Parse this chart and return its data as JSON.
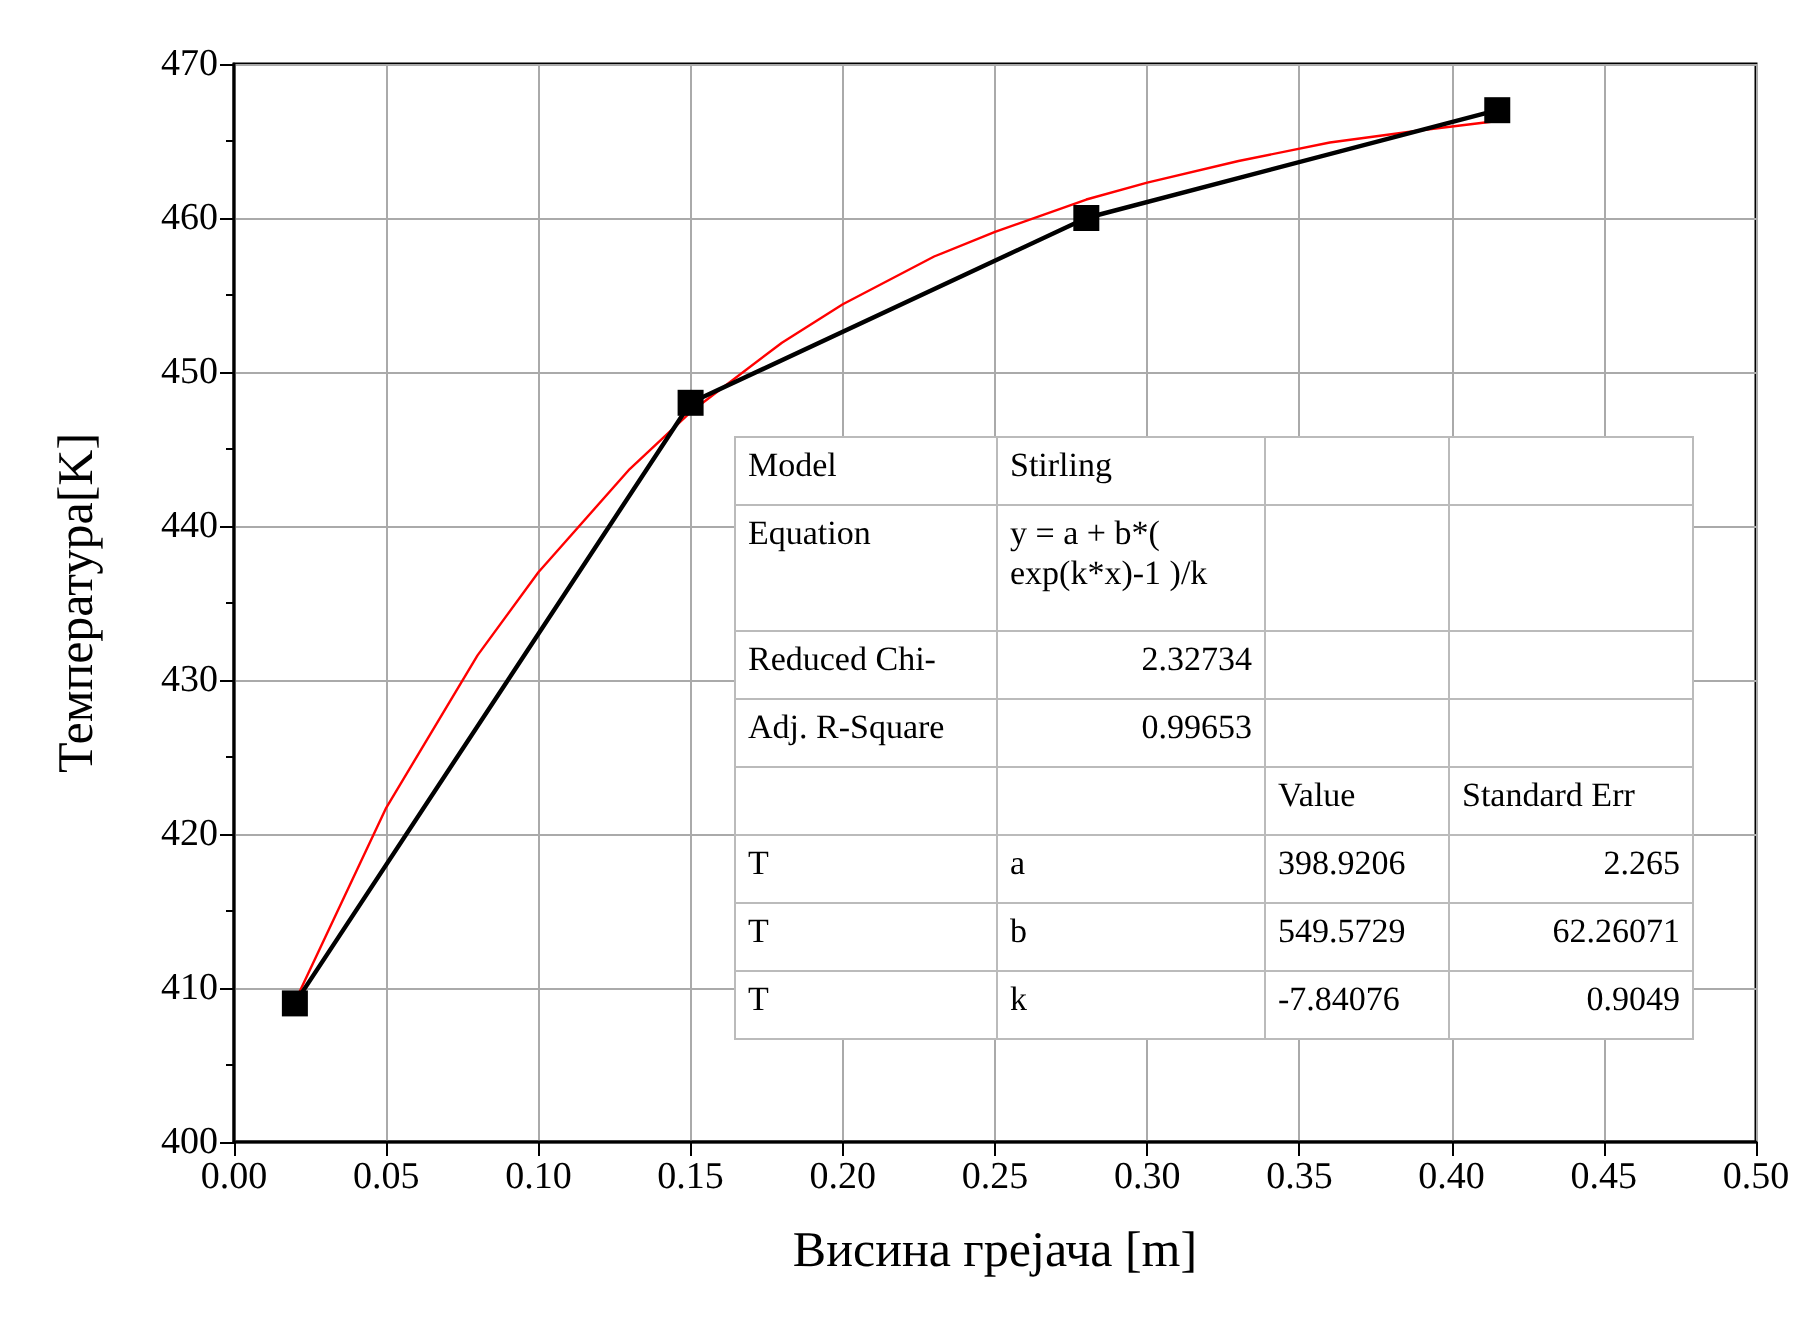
{
  "chart_data": {
    "type": "line",
    "xlabel": "Висина грејача [m]",
    "ylabel": "Температура[K]",
    "xlim": [
      0,
      0.5
    ],
    "xticks": [
      {
        "value": 0,
        "label": "0.00"
      },
      {
        "value": 0.05,
        "label": "0.05"
      },
      {
        "value": 0.1,
        "label": "0.10"
      },
      {
        "value": 0.15,
        "label": "0.15"
      },
      {
        "value": 0.2,
        "label": "0.20"
      },
      {
        "value": 0.25,
        "label": "0.25"
      },
      {
        "value": 0.3,
        "label": "0.30"
      },
      {
        "value": 0.35,
        "label": "0.35"
      },
      {
        "value": 0.4,
        "label": "0.40"
      },
      {
        "value": 0.45,
        "label": "0.45"
      },
      {
        "value": 0.5,
        "label": "0.50"
      }
    ],
    "ylim": [
      400,
      470
    ],
    "yticks": [
      400,
      410,
      420,
      430,
      440,
      450,
      460,
      470
    ],
    "grid": true,
    "series": [
      {
        "color": "#ff0000",
        "marker": "none",
        "x": [
          0.02,
          0.05,
          0.08,
          0.1,
          0.13,
          0.15,
          0.18,
          0.2,
          0.23,
          0.25,
          0.28,
          0.3,
          0.33,
          0.36,
          0.39,
          0.415
        ],
        "values": [
          409.1,
          421.7,
          431.6,
          437.0,
          443.7,
          447.4,
          451.9,
          454.4,
          457.5,
          459.1,
          461.2,
          462.3,
          463.7,
          464.9,
          465.7,
          466.3
        ]
      },
      {
        "color": "#000000",
        "marker": "square",
        "x": [
          0.02,
          0.15,
          0.28,
          0.415
        ],
        "values": [
          409,
          448,
          460,
          467
        ]
      }
    ],
    "annotations": [
      "Model",
      "Stirling",
      "Equation",
      "y = a + b*( exp(k*x)-1 )/k",
      "Reduced Chi-",
      "2.32734",
      "Adj. R-Square",
      "0.99653",
      "Value",
      "Standard Err",
      "T",
      "a",
      "398.9206",
      "2.265",
      "T",
      "b",
      "549.5729",
      "62.26071",
      "T",
      "k",
      "-7.84076",
      "0.9049"
    ]
  }
}
